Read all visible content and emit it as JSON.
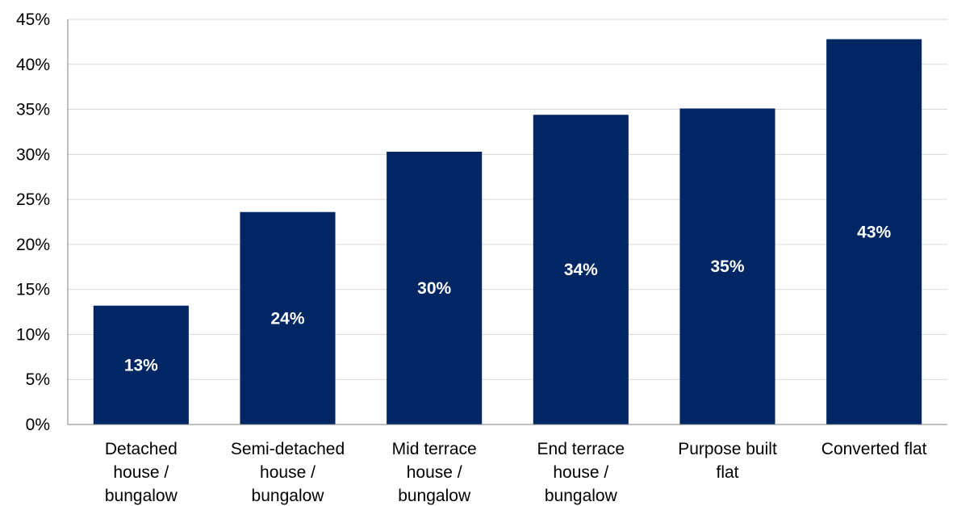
{
  "chart_data": {
    "type": "bar",
    "title": "",
    "xlabel": "",
    "ylabel": "",
    "categories": [
      "Detached house / bungalow",
      "Semi-detached house / bungalow",
      "Mid terrace house / bungalow",
      "End terrace house / bungalow",
      "Purpose built flat",
      "Converted flat"
    ],
    "category_lines": [
      [
        "Detached",
        "house /",
        "bungalow"
      ],
      [
        "Semi-detached",
        "house /",
        "bungalow"
      ],
      [
        "Mid terrace",
        "house /",
        "bungalow"
      ],
      [
        "End terrace",
        "house /",
        "bungalow"
      ],
      [
        "Purpose built",
        "flat"
      ],
      [
        "Converted flat"
      ]
    ],
    "values": [
      13.2,
      23.6,
      30.3,
      34.4,
      35.1,
      42.8
    ],
    "data_labels": [
      "13%",
      "24%",
      "30%",
      "34%",
      "35%",
      "43%"
    ],
    "ylim": [
      0,
      45
    ],
    "yticks": [
      "0%",
      "5%",
      "10%",
      "15%",
      "20%",
      "25%",
      "30%",
      "35%",
      "40%",
      "45%"
    ],
    "grid": true,
    "legend": "none",
    "colors": {
      "bar": "#002664",
      "grid": "#d9d9d9",
      "axis": "#808080"
    }
  }
}
